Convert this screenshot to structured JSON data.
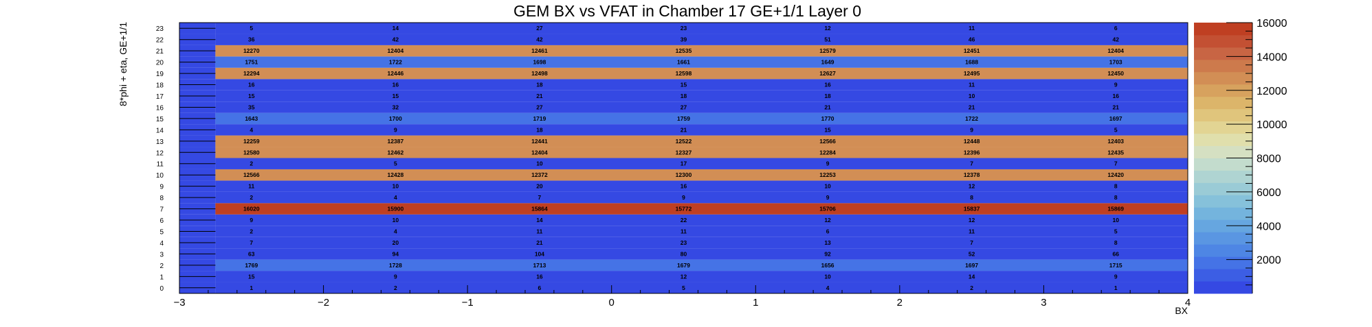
{
  "chart_data": {
    "type": "heatmap",
    "title": "GEM BX vs VFAT in Chamber 17 GE+1/1 Layer 0",
    "xlabel": "BX",
    "ylabel": "8*phi + eta, GE+1/1",
    "xlim": [
      -3,
      4
    ],
    "ylim": [
      0,
      24
    ],
    "x_tick_labels": [
      "−3",
      "−2",
      "−1",
      "0",
      "1",
      "2",
      "3",
      "4"
    ],
    "x_tick_values": [
      -3,
      -2,
      -1,
      0,
      1,
      2,
      3,
      4
    ],
    "y_tick_labels": [
      "0",
      "1",
      "2",
      "3",
      "4",
      "5",
      "6",
      "7",
      "8",
      "9",
      "10",
      "11",
      "12",
      "13",
      "14",
      "15",
      "16",
      "17",
      "18",
      "19",
      "20",
      "21",
      "22",
      "23"
    ],
    "x_bin_centers": [
      -2.5,
      -1.5,
      -0.5,
      0.5,
      1.5,
      2.5,
      3.5
    ],
    "rows": [
      [
        1,
        2,
        6,
        5,
        4,
        2,
        1
      ],
      [
        15,
        9,
        16,
        12,
        10,
        14,
        9
      ],
      [
        1769,
        1728,
        1713,
        1679,
        1656,
        1697,
        1715
      ],
      [
        63,
        94,
        104,
        80,
        92,
        52,
        66
      ],
      [
        7,
        20,
        21,
        23,
        13,
        7,
        8
      ],
      [
        2,
        4,
        11,
        11,
        6,
        11,
        5
      ],
      [
        9,
        10,
        14,
        22,
        12,
        12,
        10
      ],
      [
        16020,
        15900,
        15864,
        15772,
        15706,
        15837,
        15869
      ],
      [
        2,
        4,
        7,
        9,
        9,
        8,
        8
      ],
      [
        11,
        10,
        20,
        16,
        10,
        12,
        8
      ],
      [
        12566,
        12428,
        12372,
        12300,
        12253,
        12378,
        12420
      ],
      [
        2,
        5,
        10,
        17,
        9,
        7,
        7
      ],
      [
        12580,
        12462,
        12404,
        12327,
        12284,
        12396,
        12435
      ],
      [
        12259,
        12387,
        12441,
        12522,
        12566,
        12448,
        12403
      ],
      [
        4,
        9,
        18,
        21,
        15,
        9,
        5
      ],
      [
        1643,
        1700,
        1719,
        1759,
        1770,
        1722,
        1697
      ],
      [
        35,
        32,
        27,
        27,
        21,
        21,
        21
      ],
      [
        15,
        15,
        21,
        18,
        18,
        10,
        16
      ],
      [
        16,
        16,
        18,
        15,
        16,
        11,
        9
      ],
      [
        12294,
        12446,
        12498,
        12598,
        12627,
        12495,
        12450
      ],
      [
        1751,
        1722,
        1698,
        1661,
        1649,
        1688,
        1703
      ],
      [
        12270,
        12404,
        12461,
        12535,
        12579,
        12451,
        12404
      ],
      [
        36,
        42,
        42,
        39,
        51,
        46,
        42
      ],
      [
        5,
        14,
        27,
        23,
        12,
        11,
        6
      ]
    ],
    "zlim": [
      0,
      16000
    ],
    "colorbar_tick_values": [
      2000,
      4000,
      6000,
      8000,
      10000,
      12000,
      14000,
      16000
    ],
    "colorbar_tick_labels": [
      "2000",
      "4000",
      "6000",
      "8000",
      "10000",
      "12000",
      "14000",
      "16000"
    ],
    "palette": [
      "#3549e3",
      "#3c5ee4",
      "#4573e6",
      "#4e86e4",
      "#5a96e2",
      "#66a6e0",
      "#74b4dd",
      "#86c1da",
      "#9acbd6",
      "#afd4d2",
      "#c3dccd",
      "#d5e0c2",
      "#e0dfac",
      "#e2d493",
      "#e0c57c",
      "#dcb56a",
      "#d7a25e",
      "#d28e55",
      "#cd7a4c",
      "#c86544",
      "#c35033",
      "#bf3f22"
    ],
    "legend_placement": "colorbar-right",
    "grid": false
  }
}
